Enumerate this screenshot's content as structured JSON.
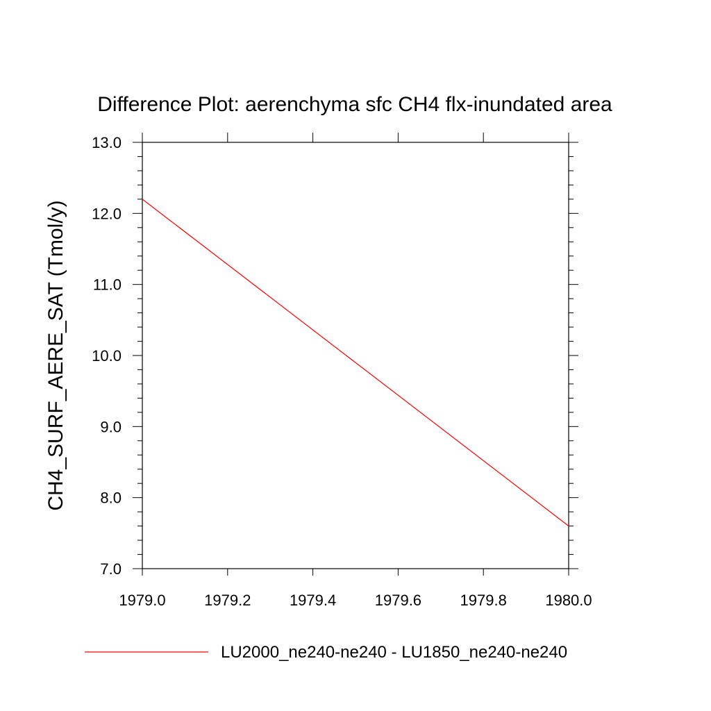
{
  "chart_data": {
    "type": "line",
    "title": "Difference Plot: aerenchyma sfc CH4 flx-inundated area",
    "xlabel": "",
    "ylabel": "CH4_SURF_AERE_SAT  (Tmol/y)",
    "xlim": [
      1979.0,
      1980.0
    ],
    "ylim": [
      7.0,
      13.0
    ],
    "x_ticks": [
      "1979.0",
      "1979.2",
      "1979.4",
      "1979.6",
      "1979.8",
      "1980.0"
    ],
    "y_ticks": [
      "7.0",
      "8.0",
      "9.0",
      "10.0",
      "11.0",
      "12.0",
      "13.0"
    ],
    "grid": false,
    "legend_position": "bottom",
    "series": [
      {
        "name": "LU2000_ne240-ne240 - LU1850_ne240-ne240",
        "color": "#ff0000",
        "x": [
          1979.0,
          1980.0
        ],
        "y": [
          12.2,
          7.6
        ]
      }
    ]
  }
}
